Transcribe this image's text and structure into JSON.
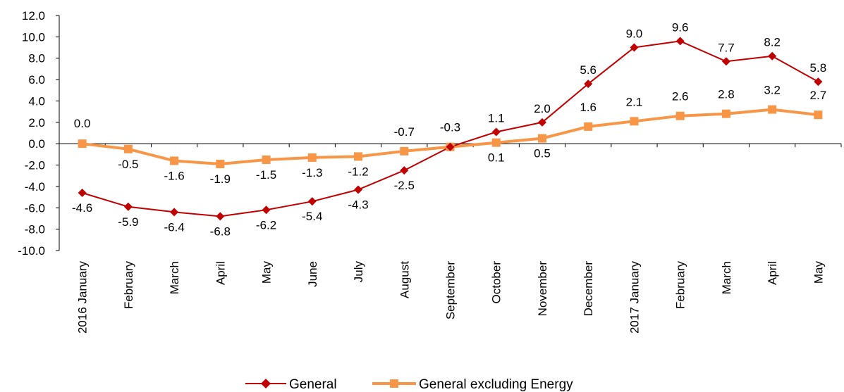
{
  "chart_data": {
    "type": "line",
    "categories": [
      "2016 January",
      "February",
      "March",
      "April",
      "May",
      "June",
      "July",
      "August",
      "September",
      "October",
      "November",
      "December",
      "2017 January",
      "February",
      "March",
      "April",
      "May"
    ],
    "series": [
      {
        "name": "General",
        "color": "#c00000",
        "marker": "diamond",
        "values": [
          -4.6,
          -5.9,
          -6.4,
          -6.8,
          -6.2,
          -5.4,
          -4.3,
          -2.5,
          -0.3,
          1.1,
          2.0,
          5.6,
          9.0,
          9.6,
          7.7,
          8.2,
          5.8
        ],
        "labels": [
          "-4.6",
          "-5.9",
          "-6.4",
          "-6.8",
          "-6.2",
          "-5.4",
          "-4.3",
          "-2.5",
          "",
          "1.1",
          "2.0",
          "5.6",
          "9.0",
          "9.6",
          "7.7",
          "8.2",
          "5.8"
        ]
      },
      {
        "name": "General excluding Energy",
        "color": "#f79646",
        "marker": "square",
        "values": [
          0.0,
          -0.5,
          -1.6,
          -1.9,
          -1.5,
          -1.3,
          -1.2,
          -0.7,
          -0.3,
          0.1,
          0.5,
          1.6,
          2.1,
          2.6,
          2.8,
          3.2,
          2.7
        ],
        "labels": [
          "0.0",
          "-0.5",
          "-1.6",
          "-1.9",
          "-1.5",
          "-1.3",
          "-1.2",
          "-0.7",
          "-0.3",
          "0.1",
          "0.5",
          "1.6",
          "2.1",
          "2.6",
          "2.8",
          "3.2",
          "2.7"
        ]
      }
    ],
    "yticks": [
      "12.0",
      "10.0",
      "8.0",
      "6.0",
      "4.0",
      "2.0",
      "0.0",
      "-2.0",
      "-4.0",
      "-6.0",
      "-8.0",
      "-10.0"
    ],
    "ylim": [
      -10,
      12
    ],
    "grid": false,
    "legend_position": "bottom"
  }
}
